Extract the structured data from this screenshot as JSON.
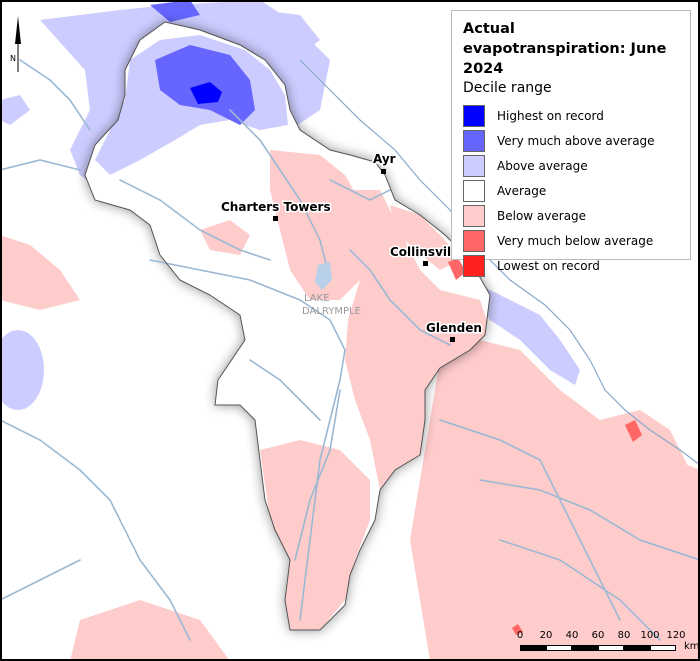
{
  "legend": {
    "title": "Actual evapotranspiration: June 2024",
    "subtitle": "Decile range",
    "items": [
      {
        "label": "Highest on record",
        "color": "#0000ff"
      },
      {
        "label": "Very much above average",
        "color": "#6666ff"
      },
      {
        "label": "Above average",
        "color": "#ccccff"
      },
      {
        "label": "Average",
        "color": "#ffffff"
      },
      {
        "label": "Below average",
        "color": "#ffcccc"
      },
      {
        "label": "Very much below average",
        "color": "#ff6666"
      },
      {
        "label": "Lowest on record",
        "color": "#ff2020"
      }
    ]
  },
  "places": [
    {
      "name": "Ayr"
    },
    {
      "name": "Charters Towers"
    },
    {
      "name": "Collinsville"
    },
    {
      "name": "Glenden"
    }
  ],
  "lake": {
    "line1": "LAKE",
    "line2": "DALRYMPLE"
  },
  "north_arrow": {
    "label": "N"
  },
  "scale_bar": {
    "ticks": [
      "0",
      "20",
      "40",
      "60",
      "80",
      "100",
      "120"
    ],
    "unit": "km"
  },
  "colors": {
    "river": "#9bb8d3",
    "basin_outline": "#555555",
    "map_border": "#000000"
  }
}
